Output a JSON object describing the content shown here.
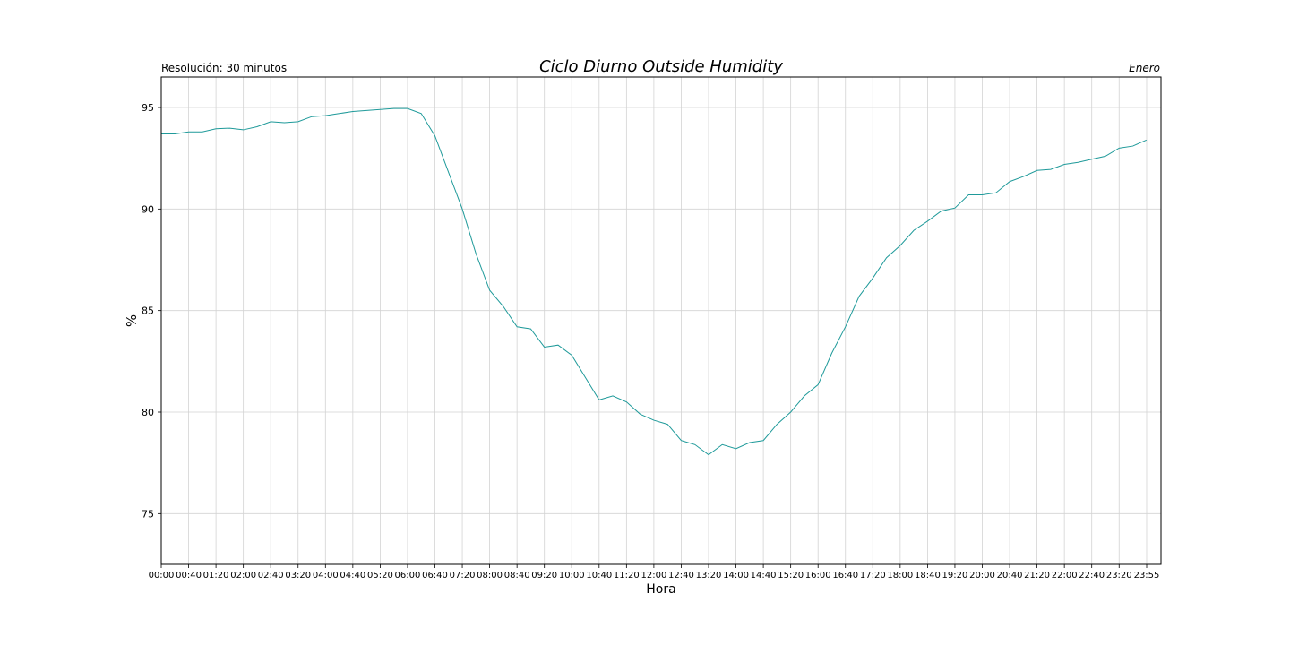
{
  "chart_data": {
    "type": "line",
    "title": "Ciclo Diurno Outside Humidity",
    "subtitle_left": "Resolución: 30 minutos",
    "subtitle_right": "Enero",
    "xlabel": "Hora",
    "ylabel": "%",
    "x_tick_labels": [
      "00:00",
      "00:40",
      "01:20",
      "02:00",
      "02:40",
      "03:20",
      "04:00",
      "04:40",
      "05:20",
      "06:00",
      "06:40",
      "07:20",
      "08:00",
      "08:40",
      "09:20",
      "10:00",
      "10:40",
      "11:20",
      "12:00",
      "12:40",
      "13:20",
      "14:00",
      "14:40",
      "15:20",
      "16:00",
      "16:40",
      "17:20",
      "18:00",
      "18:40",
      "19:20",
      "20:00",
      "20:40",
      "21:20",
      "22:00",
      "22:40",
      "23:20",
      "23:55"
    ],
    "y_ticks": [
      75,
      80,
      85,
      90,
      95
    ],
    "ylim": [
      72.5,
      96.5
    ],
    "grid": true,
    "line_color": "#1f9a9a",
    "series": [
      {
        "values": [
          93.7,
          93.7,
          93.8,
          93.8,
          93.95,
          93.98,
          93.9,
          94.05,
          94.3,
          94.25,
          94.3,
          94.55,
          94.6,
          94.7,
          94.8,
          94.85,
          94.9,
          94.95,
          94.95,
          94.7,
          93.6,
          91.8,
          90.0,
          87.8,
          86.0,
          85.2,
          84.2,
          84.1,
          83.2,
          83.3,
          82.8,
          81.7,
          80.6,
          80.8,
          80.5,
          79.9,
          79.6,
          79.4,
          78.6,
          78.4,
          77.9,
          78.4,
          78.2,
          78.5,
          78.6,
          79.4,
          80.0,
          80.8,
          81.35,
          82.9,
          84.2,
          85.7,
          86.6,
          87.6,
          88.2,
          88.95,
          89.4,
          89.9,
          90.05,
          90.7,
          90.7,
          90.8,
          91.35,
          91.6,
          91.9,
          91.95,
          92.2,
          92.3,
          92.45,
          92.6,
          93.0,
          93.1,
          93.4
        ]
      }
    ]
  }
}
